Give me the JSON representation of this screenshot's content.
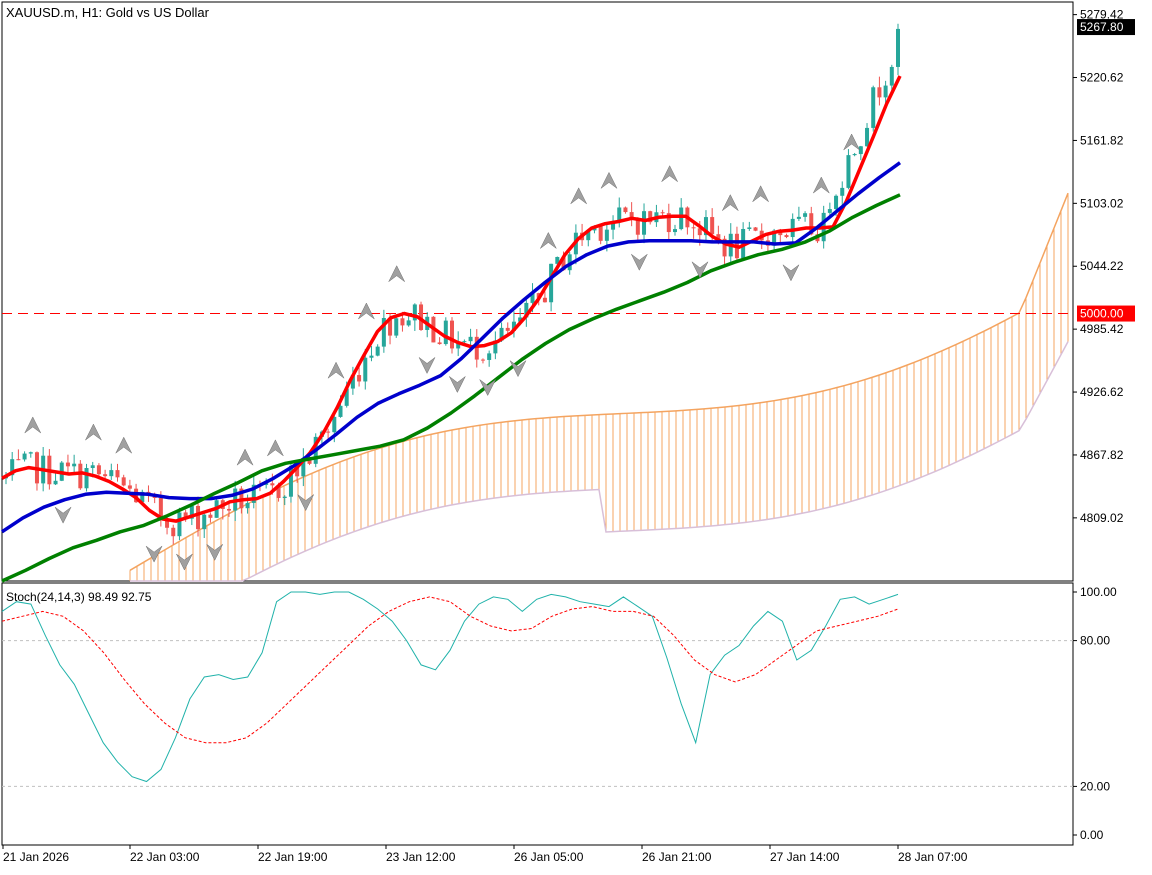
{
  "header": {
    "symbol_title": "XAUUSD.m, H1:  Gold vs US Dollar"
  },
  "oscillator": {
    "label": "Stoch(24,14,3) 98.49 92.75"
  },
  "colors": {
    "background": "#ffffff",
    "frame": "#000000",
    "grid": "#c0c0c0",
    "bull_candle": "#26a69a",
    "bear_candle": "#ef5350",
    "ma_fast": "#ff0000",
    "ma_mid": "#0000cc",
    "ma_slow": "#008000",
    "cloud_fill": "#f4a460",
    "cloud_lower_line": "#d8bfd8",
    "fractal": "#a0a0a0",
    "stoch_main": "#20b2aa",
    "stoch_signal": "#ff0000",
    "level_line": "#ff0000",
    "current_price_bg": "#000000",
    "level_label_bg": "#ff0000"
  },
  "chart_data": [
    {
      "type": "candlestick",
      "title": "XAUUSD.m, H1:  Gold vs US Dollar",
      "x_ticks": [
        "21 Jan 2026",
        "22 Jan 03:00",
        "22 Jan 19:00",
        "23 Jan 12:00",
        "26 Jan 05:00",
        "26 Jan 21:00",
        "27 Jan 14:00",
        "28 Jan 07:00"
      ],
      "y_ticks": [
        "4809.02",
        "4867.82",
        "4926.62",
        "4985.42",
        "5044.22",
        "5103.02",
        "5161.82",
        "5220.62",
        "5279.42"
      ],
      "ylim": [
        4750,
        5280
      ],
      "grid": false,
      "current_price": "5267.80",
      "horizontal_level": {
        "label": "5000.00",
        "value": 5000.0,
        "style": "dashed"
      },
      "series": [
        {
          "type": "line",
          "values": [
            4846,
            4853,
            4856,
            4854,
            4852,
            4850,
            4851,
            4848,
            4843,
            4836,
            4828,
            4816,
            4808,
            4806,
            4810,
            4814,
            4818,
            4824,
            4826,
            4827,
            4832,
            4843,
            4856,
            4870,
            4889,
            4912,
            4938,
            4961,
            4983,
            4996,
            5000,
            4997,
            4988,
            4979,
            4973,
            4969,
            4970,
            4974,
            4982,
            4996,
            5013,
            5034,
            5055,
            5070,
            5080,
            5084,
            5086,
            5089,
            5087,
            5090,
            5091,
            5091,
            5082,
            5072,
            5065,
            5062,
            5068,
            5074,
            5077,
            5078,
            5080,
            5080,
            5081,
            5105,
            5135,
            5165,
            5196,
            5222
          ]
        },
        {
          "type": "line",
          "values": [
            4796,
            4809,
            4819,
            4826,
            4831,
            4833,
            4832,
            4831,
            4828,
            4827,
            4827,
            4830,
            4836,
            4846,
            4858,
            4872,
            4887,
            4903,
            4916,
            4925,
            4933,
            4942,
            4958,
            4977,
            4996,
            5013,
            5029,
            5044,
            5055,
            5063,
            5067,
            5068,
            5068,
            5068,
            5067,
            5067,
            5067,
            5065,
            5066,
            5080,
            5096,
            5112,
            5127,
            5141
          ]
        },
        {
          "type": "line",
          "values": [
            4750,
            4760,
            4771,
            4781,
            4788,
            4796,
            4802,
            4811,
            4821,
            4832,
            4842,
            4853,
            4860,
            4864,
            4868,
            4872,
            4876,
            4882,
            4893,
            4907,
            4923,
            4940,
            4957,
            4972,
            4985,
            4995,
            5004,
            5012,
            5020,
            5029,
            5040,
            5048,
            5055,
            5060,
            5067,
            5077,
            5090,
            5101,
            5111
          ]
        }
      ]
    },
    {
      "type": "line",
      "title": "Stoch(24,14,3) 98.49 92.75",
      "y_ticks": [
        "0.00",
        "20.00",
        "80.00",
        "100.00"
      ],
      "ylim": [
        0,
        100
      ],
      "levels": [
        20,
        80
      ],
      "series": [
        {
          "values": [
            92,
            96,
            95,
            82,
            70,
            62,
            50,
            38,
            30,
            24,
            22,
            27,
            40,
            56,
            65,
            66,
            64,
            65,
            75,
            96,
            100,
            100,
            99,
            101,
            100,
            97,
            93,
            88,
            80,
            70,
            68,
            76,
            88,
            95,
            98,
            97,
            92,
            97,
            99,
            98,
            96,
            95,
            94,
            98,
            94,
            90,
            73,
            54,
            38,
            66,
            74,
            78,
            86,
            92,
            88,
            72,
            76,
            86,
            97,
            98,
            95,
            97,
            99
          ]
        },
        {
          "values": [
            88,
            90,
            92,
            90,
            84,
            75,
            64,
            54,
            46,
            40,
            38,
            38,
            40,
            46,
            54,
            62,
            70,
            78,
            86,
            92,
            96,
            98,
            96,
            90,
            86,
            84,
            85,
            90,
            93,
            94,
            92,
            92,
            90,
            82,
            72,
            66,
            63,
            66,
            72,
            78,
            84,
            86,
            88,
            90,
            93
          ]
        }
      ]
    }
  ]
}
